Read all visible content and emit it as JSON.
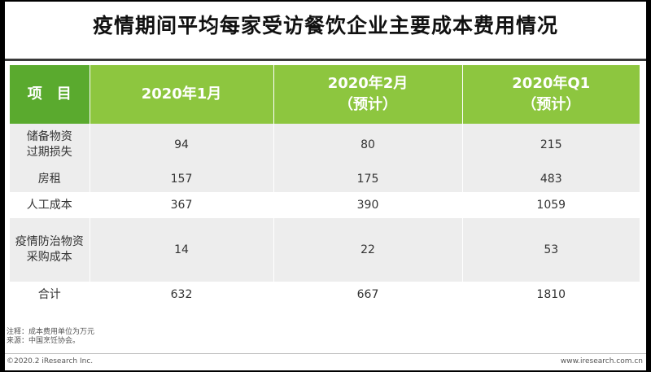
{
  "title": "疫情期间平均每家受访餐饮企业主要成本费用情况",
  "table": {
    "headers": [
      {
        "line1": "项　目",
        "line2": ""
      },
      {
        "line1": "2020年1月",
        "line2": ""
      },
      {
        "line1": "2020年2月",
        "line2": "（预计）"
      },
      {
        "line1": "2020年Q1",
        "line2": "（预计）"
      }
    ],
    "rows": [
      {
        "label1": "储备物资",
        "label2": "过期损失",
        "jan": "94",
        "feb": "80",
        "q1": "215"
      },
      {
        "label1": "房租",
        "label2": "",
        "jan": "157",
        "feb": "175",
        "q1": "483"
      },
      {
        "label1": "人工成本",
        "label2": "",
        "jan": "367",
        "feb": "390",
        "q1": "1059"
      },
      {
        "label1": "疫情防治物资",
        "label2": "采购成本",
        "jan": "14",
        "feb": "22",
        "q1": "53"
      },
      {
        "label1": "合计",
        "label2": "",
        "jan": "632",
        "feb": "667",
        "q1": "1810"
      }
    ]
  },
  "notes": {
    "note": "注释：成本费用单位为万元",
    "source": "来源：中国烹饪协会。"
  },
  "footer": {
    "copyright": "©2020.2 iResearch Inc.",
    "website": "www.iresearch.com.cn"
  },
  "colors": {
    "header_item": "#5aaa2e",
    "header_data": "#8dc63f",
    "row_shade": "#ededed"
  }
}
